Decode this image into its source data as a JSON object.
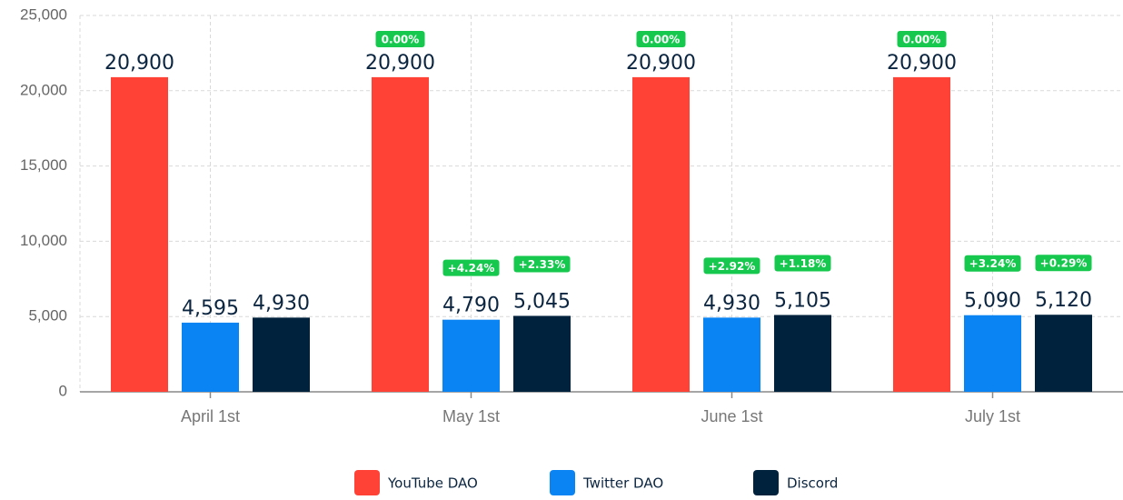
{
  "chart_data": {
    "type": "bar",
    "categories": [
      "April 1st",
      "May 1st",
      "June 1st",
      "July 1st"
    ],
    "series": [
      {
        "name": "YouTube DAO",
        "color": "#ff4136",
        "values": [
          20900,
          20900,
          20900,
          20900
        ],
        "value_labels": [
          "20,900",
          "20,900",
          "20,900",
          "20,900"
        ],
        "change_labels": [
          null,
          "0.00%",
          "0.00%",
          "0.00%"
        ]
      },
      {
        "name": "Twitter DAO",
        "color": "#0a84f2",
        "values": [
          4595,
          4790,
          4930,
          5090
        ],
        "value_labels": [
          "4,595",
          "4,790",
          "4,930",
          "5,090"
        ],
        "change_labels": [
          null,
          "+4.24%",
          "+2.92%",
          "+3.24%"
        ]
      },
      {
        "name": "Discord",
        "color": "#00223d",
        "values": [
          4930,
          5045,
          5105,
          5120
        ],
        "value_labels": [
          "4,930",
          "5,045",
          "5,105",
          "5,120"
        ],
        "change_labels": [
          null,
          "+2.33%",
          "+1.18%",
          "+0.29%"
        ]
      }
    ],
    "badge_color": "#16c94e",
    "ylim": [
      0,
      25000
    ],
    "yticks": [
      0,
      {
        "value": 5000,
        "label": "5,000"
      },
      {
        "value": 10000,
        "label": "10,000"
      },
      {
        "value": 15000,
        "label": "15,000"
      },
      {
        "value": 20000,
        "label": "20,000"
      },
      {
        "value": 25000,
        "label": "25,000"
      }
    ],
    "grid": true,
    "legend": "bottom"
  }
}
